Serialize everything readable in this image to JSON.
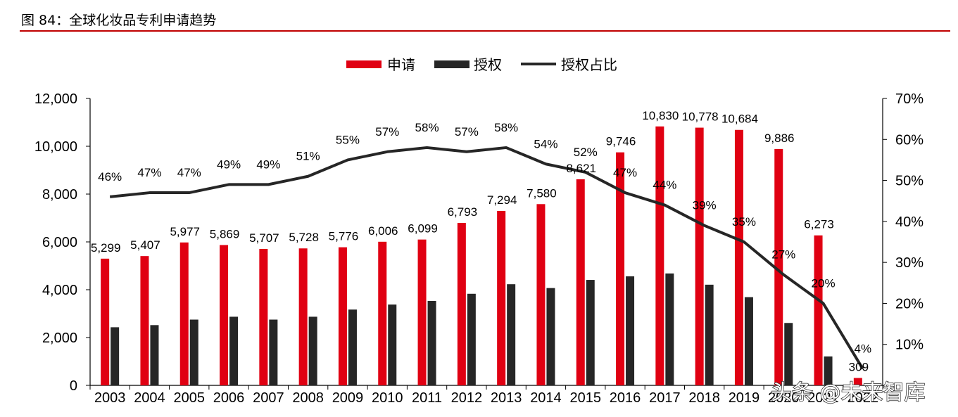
{
  "figure": {
    "title": "图 84：全球化妆品专利申请趋势"
  },
  "watermark": "头条 @未来智库",
  "colors": {
    "apply": "#e00012",
    "grant": "#262626",
    "ratio": "#262626",
    "rule": "#c00000"
  },
  "chart_data": {
    "type": "bar",
    "categories": [
      "2003",
      "2004",
      "2005",
      "2006",
      "2007",
      "2008",
      "2009",
      "2010",
      "2011",
      "2012",
      "2013",
      "2014",
      "2015",
      "2016",
      "2017",
      "2018",
      "2019",
      "2020",
      "2021",
      "2022"
    ],
    "x_tick_labels": [
      "2003",
      "2004",
      "2005",
      "2006",
      "2007",
      "2008",
      "2009",
      "2010",
      "2011",
      "2012",
      "2013",
      "2014",
      "2015",
      "2016",
      "2017",
      "2018",
      "2019",
      "2020",
      "2021",
      "2022"
    ],
    "legend": {
      "placement": "top-center",
      "entries": [
        "申请",
        "授权",
        "授权占比"
      ]
    },
    "series": [
      {
        "name": "申请",
        "kind": "bar",
        "axis": "left",
        "values": [
          5299,
          5407,
          5977,
          5869,
          5707,
          5728,
          5776,
          6006,
          6099,
          6793,
          7294,
          7580,
          8621,
          9746,
          10830,
          10778,
          10684,
          9886,
          6273,
          309
        ],
        "labels": [
          "5,299",
          "5,407",
          "5,977",
          "5,869",
          "5,707",
          "5,728",
          "5,776",
          "6,006",
          "6,099",
          "6,793",
          "7,294",
          "7,580",
          "8,621",
          "9,746",
          "10,830",
          "10,778",
          "10,684",
          "9,886",
          "6,273",
          "309"
        ]
      },
      {
        "name": "授权",
        "kind": "bar",
        "axis": "left",
        "values": [
          2430,
          2520,
          2750,
          2870,
          2750,
          2870,
          3170,
          3380,
          3530,
          3830,
          4230,
          4070,
          4410,
          4560,
          4680,
          4210,
          3690,
          2610,
          1210,
          10
        ]
      },
      {
        "name": "授权占比",
        "kind": "line",
        "axis": "right",
        "values": [
          46,
          47,
          47,
          49,
          49,
          51,
          55,
          57,
          58,
          57,
          58,
          54,
          52,
          47,
          44,
          39,
          35,
          27,
          20,
          4
        ],
        "labels": [
          "46%",
          "47%",
          "47%",
          "49%",
          "49%",
          "51%",
          "55%",
          "57%",
          "58%",
          "57%",
          "58%",
          "54%",
          "52%",
          "47%",
          "44%",
          "39%",
          "35%",
          "27%",
          "20%",
          "4%"
        ]
      }
    ],
    "left_axis": {
      "min": 0,
      "max": 12000,
      "ticks": [
        "0",
        "2,000",
        "4,000",
        "6,000",
        "8,000",
        "10,000",
        "12,000"
      ]
    },
    "right_axis": {
      "min": 0,
      "max": 70,
      "ticks": [
        "10%",
        "20%",
        "30%",
        "40%",
        "50%",
        "60%",
        "70%"
      ]
    },
    "grid": false
  }
}
